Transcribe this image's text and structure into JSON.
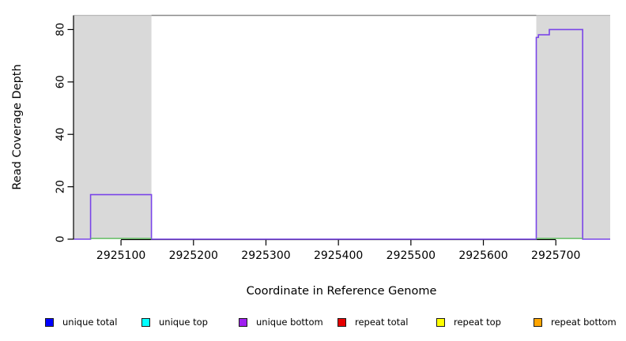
{
  "chart_data": {
    "type": "line",
    "title": "",
    "xlabel": "Coordinate in Reference Genome",
    "ylabel": "Read Coverage Depth",
    "xlim": [
      2925035,
      2925775
    ],
    "ylim": [
      0,
      85.4
    ],
    "xticks": [
      2925100,
      2925200,
      2925300,
      2925400,
      2925500,
      2925600,
      2925700
    ],
    "yticks": [
      0,
      20,
      40,
      60,
      80
    ],
    "grid": false,
    "background": "#ffffff",
    "masked_regions": {
      "comment_visible": "light gray shaded rectangles spanning full plot height",
      "fill": "#d9d9d9",
      "border": "#b8b8b8",
      "regions": [
        [
          2925035,
          2925142
        ],
        [
          2925673,
          2925775
        ]
      ]
    },
    "top_boundary_segment": {
      "x": [
        2925142,
        2925673
      ],
      "y": 85.4,
      "color": "#8a8a8a"
    },
    "series": [
      {
        "name": "unique bottom coverage",
        "color": "#7a45e8",
        "stroke_width": 1.6,
        "steps": [
          [
            2925035,
            0
          ],
          [
            2925058,
            17
          ],
          [
            2925142,
            0
          ],
          [
            2925673,
            77
          ],
          [
            2925676,
            78
          ],
          [
            2925691,
            80
          ],
          [
            2925737,
            0
          ],
          [
            2925775,
            0
          ]
        ]
      },
      {
        "name": "zero-depth baseline segments",
        "color": "#5cbf5c",
        "stroke_width": 1.4,
        "y": 0,
        "segments": [
          [
            2925058,
            2925142
          ],
          [
            2925673,
            2925737
          ]
        ]
      }
    ],
    "legend": {
      "position": "bottom",
      "items": [
        {
          "label": "unique total",
          "color": "#0000ff"
        },
        {
          "label": "unique top",
          "color": "#00ffff"
        },
        {
          "label": "unique bottom",
          "color": "#a020f0"
        },
        {
          "label": "repeat total",
          "color": "#e60000"
        },
        {
          "label": "repeat top",
          "color": "#ffff00"
        },
        {
          "label": "repeat bottom",
          "color": "#ffa500"
        }
      ]
    }
  }
}
